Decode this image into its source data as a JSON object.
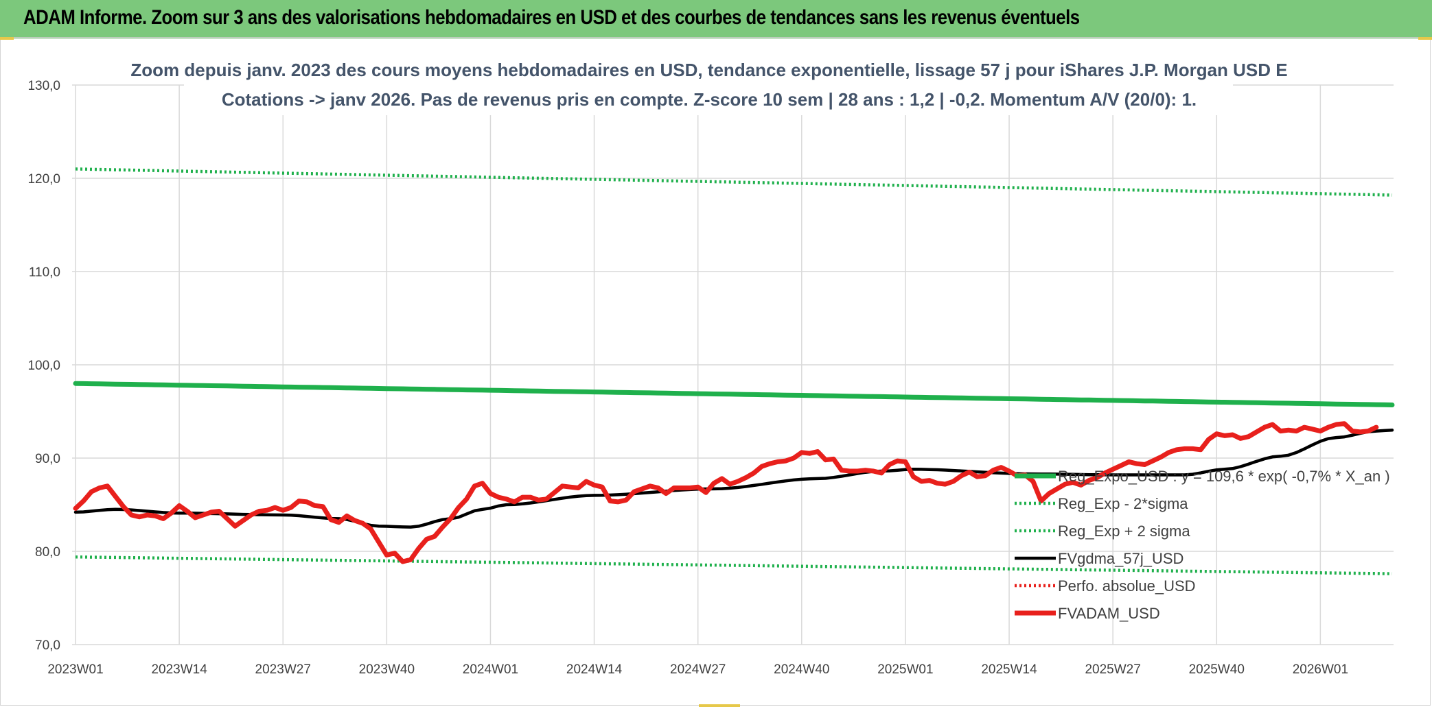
{
  "banner": {
    "title": "ADAM Informe. Zoom sur 3 ans des valorisations hebdomadaires en USD et des courbes de tendances sans les revenus éventuels"
  },
  "chart_data": {
    "type": "line",
    "title_line1": "Zoom depuis janv. 2023 des cours moyens hebdomadaires en USD, tendance exponentielle, lissage 57 j pour iShares J.P. Morgan USD E",
    "title_line2": "Cotations -> janv 2026. Pas de revenus pris en compte. Z-score 10 sem | 28 ans : 1,2 | -0,2. Momentum A/V (20/0): 1.",
    "ylim": [
      70,
      130
    ],
    "yticks": [
      "70,0",
      "80,0",
      "90,0",
      "100,0",
      "110,0",
      "120,0",
      "130,0"
    ],
    "ytick_values": [
      70,
      80,
      90,
      100,
      110,
      120,
      130
    ],
    "xticks": [
      "2023W01",
      "2023W14",
      "2023W27",
      "2023W40",
      "2024W01",
      "2024W14",
      "2024W27",
      "2024W40",
      "2025W01",
      "2025W14",
      "2025W27",
      "2025W40",
      "2026W01"
    ],
    "x_week_count": 165,
    "grid": true,
    "legend_position": "right",
    "series": [
      {
        "name": "Reg_Expo_USD : y = 109,6 * exp( -0,7% *  X_an )",
        "color": "#1fb04c",
        "style": "solid-thick",
        "start": 98.0,
        "end": 95.7
      },
      {
        "name": "Reg_Exp - 2*sigma",
        "color": "#1fb04c",
        "style": "dotted",
        "start": 79.4,
        "end": 77.6
      },
      {
        "name": "Reg_Exp + 2 sigma",
        "color": "#1fb04c",
        "style": "dotted",
        "start": 121.0,
        "end": 118.2
      },
      {
        "name": "FVgdma_57j_USD",
        "color": "#000000",
        "style": "solid",
        "keypoints": [
          [
            0,
            84.2
          ],
          [
            5,
            84.5
          ],
          [
            13,
            84.1
          ],
          [
            26,
            83.9
          ],
          [
            33,
            83.5
          ],
          [
            38,
            82.7
          ],
          [
            42,
            82.6
          ],
          [
            47,
            83.5
          ],
          [
            51,
            84.5
          ],
          [
            54,
            85.0
          ],
          [
            65,
            86.0
          ],
          [
            80,
            86.7
          ],
          [
            93,
            87.8
          ],
          [
            101,
            88.6
          ],
          [
            105,
            88.8
          ],
          [
            120,
            88.3
          ],
          [
            130,
            88.2
          ],
          [
            139,
            88.2
          ],
          [
            144,
            88.8
          ],
          [
            151,
            90.2
          ],
          [
            158,
            92.2
          ],
          [
            163,
            92.9
          ],
          [
            165,
            93.0
          ]
        ]
      },
      {
        "name": "Perfo. absolue_USD",
        "color": "#e8201c",
        "style": "dotted",
        "values": []
      },
      {
        "name": "FVADAM_USD",
        "color": "#e8201c",
        "style": "solid-thick",
        "values": [
          84.6,
          85.4,
          86.4,
          86.8,
          87.0,
          85.9,
          84.8,
          83.9,
          83.7,
          83.9,
          83.8,
          83.5,
          84.1,
          84.9,
          84.3,
          83.6,
          83.9,
          84.2,
          84.3,
          83.5,
          82.7,
          83.3,
          83.9,
          84.3,
          84.4,
          84.7,
          84.4,
          84.7,
          85.4,
          85.3,
          84.9,
          84.8,
          83.4,
          83.1,
          83.8,
          83.3,
          83.0,
          82.4,
          81.0,
          79.6,
          79.8,
          78.9,
          79.1,
          80.3,
          81.3,
          81.6,
          82.6,
          83.5,
          84.7,
          85.6,
          87.0,
          87.3,
          86.2,
          85.8,
          85.6,
          85.3,
          85.8,
          85.8,
          85.5,
          85.6,
          86.3,
          87.0,
          86.9,
          86.8,
          87.5,
          87.1,
          86.9,
          85.4,
          85.3,
          85.5,
          86.4,
          86.7,
          87.0,
          86.8,
          86.2,
          86.8,
          86.8,
          86.8,
          86.9,
          86.3,
          87.3,
          87.8,
          87.2,
          87.5,
          87.9,
          88.4,
          89.1,
          89.4,
          89.6,
          89.7,
          90.0,
          90.6,
          90.5,
          90.7,
          89.8,
          89.9,
          88.7,
          88.6,
          88.6,
          88.7,
          88.6,
          88.4,
          89.3,
          89.7,
          89.6,
          88.0,
          87.5,
          87.6,
          87.3,
          87.2,
          87.5,
          88.1,
          88.5,
          88.0,
          88.1,
          88.7,
          89.0,
          88.6,
          88.1,
          88.2,
          87.5,
          85.4,
          86.2,
          86.7,
          87.2,
          87.4,
          87.1,
          87.6,
          87.9,
          88.4,
          88.8,
          89.2,
          89.6,
          89.4,
          89.3,
          89.7,
          90.1,
          90.6,
          90.9,
          91.0,
          91.0,
          90.9,
          92.0,
          92.6,
          92.4,
          92.5,
          92.1,
          92.3,
          92.8,
          93.3,
          93.6,
          92.9,
          93.0,
          92.9,
          93.3,
          93.1,
          92.9,
          93.3,
          93.6,
          93.7,
          92.9,
          92.8,
          92.9,
          93.3
        ]
      }
    ]
  }
}
